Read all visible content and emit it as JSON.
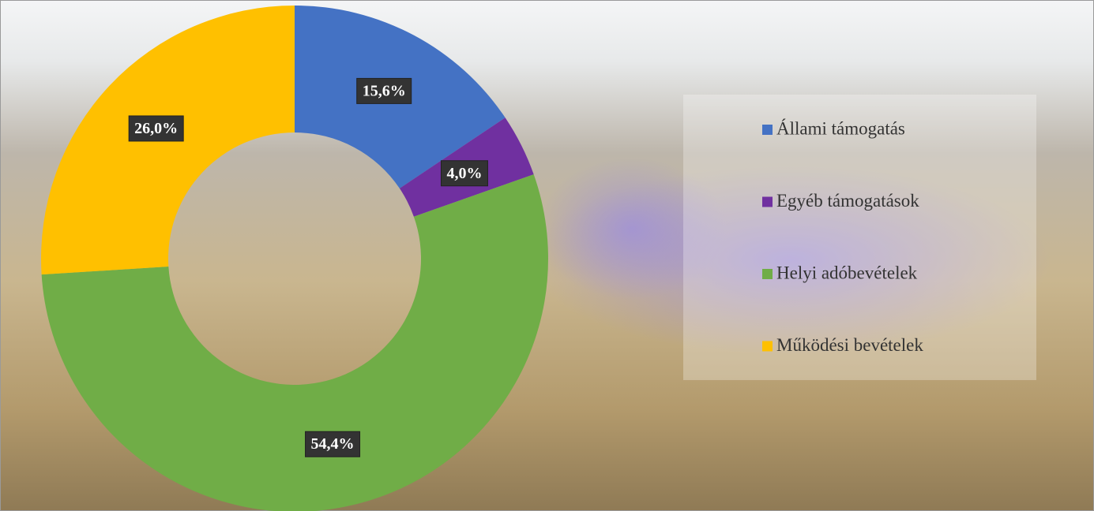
{
  "chart_data": {
    "type": "donut",
    "categories": [
      "Állami támogatás",
      "Egyéb támogatások",
      "Helyi adóbevételek",
      "Működési bevételek"
    ],
    "values": [
      15.6,
      4.0,
      54.4,
      26.0
    ],
    "value_labels": [
      "15,6%",
      "4,0%",
      "54,4%",
      "26,0%"
    ],
    "colors": [
      "#4472c4",
      "#7030a0",
      "#70ad47",
      "#ffc000"
    ],
    "legend": "right"
  }
}
